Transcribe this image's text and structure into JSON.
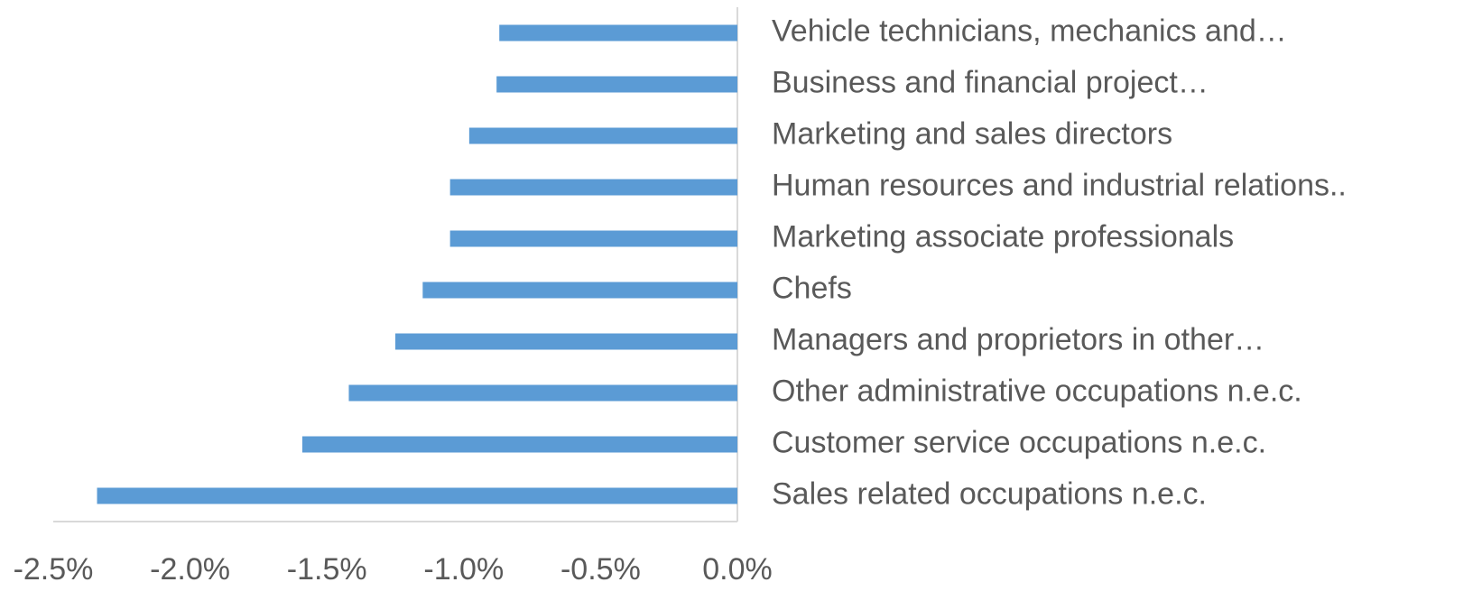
{
  "chart_data": {
    "type": "barh",
    "categories": [
      "Vehicle technicians, mechanics and…",
      "Business and financial project…",
      "Marketing and sales directors",
      "Human resources and industrial relations..",
      "Marketing associate professionals",
      "Chefs",
      "Managers and proprietors in other…",
      "Other administrative occupations n.e.c.",
      "Customer service occupations n.e.c.",
      "Sales related occupations n.e.c."
    ],
    "values": [
      -0.87,
      -0.88,
      -0.98,
      -1.05,
      -1.05,
      -1.15,
      -1.25,
      -1.42,
      -1.59,
      -2.34
    ],
    "color": "#5b9bd5",
    "xlim": [
      -2.5,
      0
    ],
    "xticks": [
      {
        "value": -2.5,
        "label": "-2.5%"
      },
      {
        "value": -2.0,
        "label": "-2.0%"
      },
      {
        "value": -1.5,
        "label": "-1.5%"
      },
      {
        "value": -1.0,
        "label": "-1.0%"
      },
      {
        "value": -0.5,
        "label": "-0.5%"
      },
      {
        "value": 0,
        "label": "0.0%"
      }
    ],
    "grid": false
  }
}
